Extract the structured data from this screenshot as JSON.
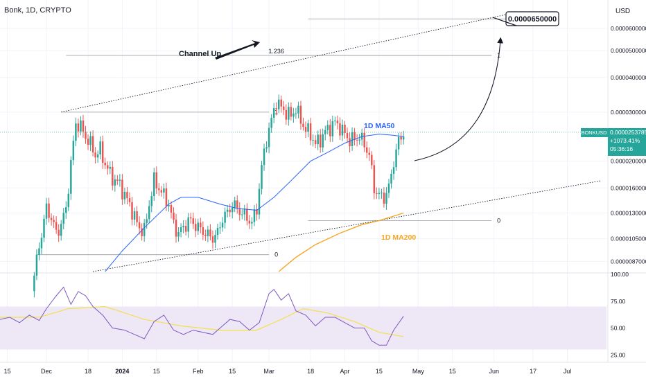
{
  "header": {
    "symbol_title": "Bonk, 1D, CRYPTO",
    "currency": "USD"
  },
  "colors": {
    "up": "#26a69a",
    "down": "#ef5350",
    "ma50": "#2962ff",
    "ma200": "#f5a623",
    "rsi": "#7e57c2",
    "rsi_ma": "#f4e04d",
    "rsi_band": "#ede7f6",
    "price_badge": "#26a69a"
  },
  "chart_data": [
    {
      "type": "candlestick",
      "title": "Bonk, 1D, CRYPTO",
      "xlabel": "",
      "ylabel": "",
      "y_scale": "log",
      "ylim": [
        8e-06,
        7.6e-05
      ],
      "x_range": [
        "2023-11-12",
        "2024-07-17"
      ],
      "x_ticks": [
        {
          "date": "2023-11-15",
          "label": "15"
        },
        {
          "date": "2023-12-01",
          "label": "Dec"
        },
        {
          "date": "2023-12-18",
          "label": "18"
        },
        {
          "date": "2024-01-01",
          "label": "2024"
        },
        {
          "date": "2024-01-15",
          "label": "15"
        },
        {
          "date": "2024-02-01",
          "label": "Feb"
        },
        {
          "date": "2024-02-15",
          "label": "15"
        },
        {
          "date": "2024-03-01",
          "label": "Mar"
        },
        {
          "date": "2024-03-18",
          "label": "18"
        },
        {
          "date": "2024-04-01",
          "label": "Apr"
        },
        {
          "date": "2024-04-15",
          "label": "15"
        },
        {
          "date": "2024-05-01",
          "label": "May"
        },
        {
          "date": "2024-05-15",
          "label": "15"
        },
        {
          "date": "2024-06-01",
          "label": "Jun"
        },
        {
          "date": "2024-06-17",
          "label": "17"
        },
        {
          "date": "2024-07-01",
          "label": "Jul"
        }
      ],
      "y_ticks": [
        "0.0000600000",
        "0.0000500000",
        "0.0000400000",
        "0.0000300000",
        "0.0000200000",
        "0.0000160000",
        "0.0000130000",
        "0.0000105000",
        "0.0000087000"
      ],
      "price_badge": {
        "symbol": "BONKUSD",
        "price": "0.0000253785",
        "change": "+1073.41%",
        "countdown": "05:36:16",
        "value": 2.53785e-05
      },
      "price_path": [
        [
          "2023-11-25",
          6.8e-06
        ],
        [
          "2023-11-27",
          8.8e-06
        ],
        [
          "2023-11-29",
          1.1e-05
        ],
        [
          "2023-12-01",
          1.35e-05
        ],
        [
          "2023-12-03",
          1.25e-05
        ],
        [
          "2023-12-05",
          1.1e-05
        ],
        [
          "2023-12-07",
          1.18e-05
        ],
        [
          "2023-12-09",
          1.35e-05
        ],
        [
          "2023-12-11",
          1.95e-05
        ],
        [
          "2023-12-13",
          2.75e-05
        ],
        [
          "2023-12-15",
          2.65e-05
        ],
        [
          "2023-12-17",
          2.45e-05
        ],
        [
          "2023-12-19",
          2.3e-05
        ],
        [
          "2023-12-21",
          2.1e-05
        ],
        [
          "2023-12-23",
          2.2e-05
        ],
        [
          "2023-12-25",
          1.95e-05
        ],
        [
          "2023-12-27",
          1.8e-05
        ],
        [
          "2023-12-29",
          1.7e-05
        ],
        [
          "2023-12-31",
          1.65e-05
        ],
        [
          "2024-01-02",
          1.5e-05
        ],
        [
          "2024-01-04",
          1.4e-05
        ],
        [
          "2024-01-06",
          1.25e-05
        ],
        [
          "2024-01-08",
          1.15e-05
        ],
        [
          "2024-01-10",
          1.12e-05
        ],
        [
          "2024-01-12",
          1.4e-05
        ],
        [
          "2024-01-14",
          1.7e-05
        ],
        [
          "2024-01-16",
          1.6e-05
        ],
        [
          "2024-01-18",
          1.5e-05
        ],
        [
          "2024-01-20",
          1.4e-05
        ],
        [
          "2024-01-22",
          1.18e-05
        ],
        [
          "2024-01-24",
          1.1e-05
        ],
        [
          "2024-01-26",
          1.15e-05
        ],
        [
          "2024-01-28",
          1.22e-05
        ],
        [
          "2024-01-30",
          1.2e-05
        ],
        [
          "2024-02-01",
          1.15e-05
        ],
        [
          "2024-02-03",
          1.12e-05
        ],
        [
          "2024-02-05",
          1.08e-05
        ],
        [
          "2024-02-07",
          1.06e-05
        ],
        [
          "2024-02-09",
          1.1e-05
        ],
        [
          "2024-02-11",
          1.25e-05
        ],
        [
          "2024-02-13",
          1.3e-05
        ],
        [
          "2024-02-15",
          1.4e-05
        ],
        [
          "2024-02-17",
          1.35e-05
        ],
        [
          "2024-02-19",
          1.3e-05
        ],
        [
          "2024-02-21",
          1.25e-05
        ],
        [
          "2024-02-23",
          1.2e-05
        ],
        [
          "2024-02-25",
          1.35e-05
        ],
        [
          "2024-02-27",
          1.9e-05
        ],
        [
          "2024-02-29",
          2.4e-05
        ],
        [
          "2024-03-02",
          2.8e-05
        ],
        [
          "2024-03-04",
          3.3e-05
        ],
        [
          "2024-03-06",
          3.1e-05
        ],
        [
          "2024-03-08",
          3e-05
        ],
        [
          "2024-03-10",
          2.9e-05
        ],
        [
          "2024-03-12",
          3.1e-05
        ],
        [
          "2024-03-14",
          2.8e-05
        ],
        [
          "2024-03-16",
          2.6e-05
        ],
        [
          "2024-03-18",
          2.5e-05
        ],
        [
          "2024-03-20",
          2.3e-05
        ],
        [
          "2024-03-22",
          2.4e-05
        ],
        [
          "2024-03-24",
          2.55e-05
        ],
        [
          "2024-03-26",
          2.65e-05
        ],
        [
          "2024-03-28",
          2.75e-05
        ],
        [
          "2024-03-30",
          2.65e-05
        ],
        [
          "2024-04-01",
          2.5e-05
        ],
        [
          "2024-04-03",
          2.38e-05
        ],
        [
          "2024-04-05",
          2.4e-05
        ],
        [
          "2024-04-07",
          2.45e-05
        ],
        [
          "2024-04-09",
          2.3e-05
        ],
        [
          "2024-04-11",
          2.1e-05
        ],
        [
          "2024-04-13",
          1.6e-05
        ],
        [
          "2024-04-15",
          1.5e-05
        ],
        [
          "2024-04-17",
          1.48e-05
        ],
        [
          "2024-04-19",
          1.6e-05
        ],
        [
          "2024-04-21",
          2e-05
        ],
        [
          "2024-04-23",
          2.35e-05
        ],
        [
          "2024-04-25",
          2.53785e-05
        ]
      ],
      "ma50": [
        [
          "2023-12-25",
          8e-06
        ],
        [
          "2024-01-01",
          9.5e-06
        ],
        [
          "2024-01-10",
          1.15e-05
        ],
        [
          "2024-01-20",
          1.4e-05
        ],
        [
          "2024-01-25",
          1.48e-05
        ],
        [
          "2024-02-01",
          1.48e-05
        ],
        [
          "2024-02-10",
          1.4e-05
        ],
        [
          "2024-02-17",
          1.35e-05
        ],
        [
          "2024-02-25",
          1.33e-05
        ],
        [
          "2024-03-03",
          1.48e-05
        ],
        [
          "2024-03-10",
          1.7e-05
        ],
        [
          "2024-03-18",
          2e-05
        ],
        [
          "2024-03-25",
          2.15e-05
        ],
        [
          "2024-04-01",
          2.32e-05
        ],
        [
          "2024-04-08",
          2.45e-05
        ],
        [
          "2024-04-15",
          2.5e-05
        ],
        [
          "2024-04-20",
          2.48e-05
        ],
        [
          "2024-04-25",
          2.45e-05
        ]
      ],
      "ma200": [
        [
          "2024-03-05",
          8e-06
        ],
        [
          "2024-03-12",
          9e-06
        ],
        [
          "2024-03-20",
          1e-05
        ],
        [
          "2024-03-30",
          1.1e-05
        ],
        [
          "2024-04-08",
          1.18e-05
        ],
        [
          "2024-04-15",
          1.22e-05
        ],
        [
          "2024-04-25",
          1.3e-05
        ]
      ],
      "channel_lines": [
        {
          "name": "channel-upper",
          "from": [
            "2023-12-07",
            3e-05
          ],
          "to": [
            "2024-06-08",
            6.8e-05
          ]
        },
        {
          "name": "channel-lower",
          "from": [
            "2023-12-20",
            8e-06
          ],
          "to": [
            "2024-07-15",
            1.7e-05
          ]
        }
      ],
      "fib_levels": [
        {
          "label": "1",
          "value": 3e-05,
          "from": "2023-12-07",
          "to": "2024-03-01",
          "label_pos": "right"
        },
        {
          "label": "0",
          "value": 9.2e-06,
          "from": "2023-11-27",
          "to": "2024-03-01",
          "label_pos": "right"
        },
        {
          "label": "1.236",
          "value": 4.8e-05,
          "from": "2023-12-09",
          "to": "2024-05-31",
          "label_pos": "mid"
        },
        {
          "label": "1",
          "value": 4.8e-05,
          "from": "2024-03-04",
          "to": "2024-05-31",
          "label_pos": "right"
        },
        {
          "label": "0",
          "value": 1.22e-05,
          "from": "2024-03-17",
          "to": "2024-05-31",
          "label_pos": "right"
        },
        {
          "label": "1.236",
          "value": 6.5e-05,
          "from": "2024-03-17",
          "to": "2024-06-06",
          "label_pos": "right"
        }
      ],
      "annotations": [
        {
          "name": "target-callout",
          "text": "0.0000650000"
        },
        {
          "name": "channel-up-label",
          "text": "Channel Up"
        },
        {
          "name": "ma50-label",
          "text": "1D MA50"
        },
        {
          "name": "ma200-label",
          "text": "1D MA200"
        }
      ]
    },
    {
      "type": "line",
      "title": "",
      "xlabel": "",
      "ylabel": "",
      "ylim": [
        20,
        100
      ],
      "y_ticks": [
        100.0,
        75.0,
        50.0,
        25.0
      ],
      "y_tick_labels": [
        "100.00",
        "75.00",
        "50.00",
        "25.00"
      ],
      "band": [
        30,
        70
      ],
      "series": [
        {
          "values": [
            [
              "2023-11-12",
              58
            ],
            [
              "2023-11-16",
              60
            ],
            [
              "2023-11-20",
              55
            ],
            [
              "2023-11-24",
              62
            ],
            [
              "2023-11-28",
              57
            ],
            [
              "2023-12-01",
              68
            ],
            [
              "2023-12-05",
              80
            ],
            [
              "2023-12-08",
              88
            ],
            [
              "2023-12-11",
              72
            ],
            [
              "2023-12-14",
              84
            ],
            [
              "2023-12-17",
              80
            ],
            [
              "2023-12-20",
              70
            ],
            [
              "2023-12-24",
              62
            ],
            [
              "2023-12-28",
              50
            ],
            [
              "2024-01-02",
              48
            ],
            [
              "2024-01-06",
              44
            ],
            [
              "2024-01-10",
              40
            ],
            [
              "2024-01-14",
              56
            ],
            [
              "2024-01-18",
              62
            ],
            [
              "2024-01-22",
              48
            ],
            [
              "2024-01-26",
              44
            ],
            [
              "2024-01-30",
              48
            ],
            [
              "2024-02-03",
              46
            ],
            [
              "2024-02-07",
              44
            ],
            [
              "2024-02-11",
              52
            ],
            [
              "2024-02-14",
              58
            ],
            [
              "2024-02-18",
              56
            ],
            [
              "2024-02-22",
              48
            ],
            [
              "2024-02-26",
              55
            ],
            [
              "2024-03-01",
              82
            ],
            [
              "2024-03-03",
              86
            ],
            [
              "2024-03-06",
              76
            ],
            [
              "2024-03-09",
              82
            ],
            [
              "2024-03-12",
              66
            ],
            [
              "2024-03-16",
              62
            ],
            [
              "2024-03-20",
              52
            ],
            [
              "2024-03-24",
              60
            ],
            [
              "2024-03-28",
              60
            ],
            [
              "2024-04-01",
              55
            ],
            [
              "2024-04-05",
              50
            ],
            [
              "2024-04-09",
              50
            ],
            [
              "2024-04-12",
              38
            ],
            [
              "2024-04-15",
              34
            ],
            [
              "2024-04-18",
              34
            ],
            [
              "2024-04-21",
              48
            ],
            [
              "2024-04-25",
              61
            ]
          ]
        },
        {
          "values": [
            [
              "2023-11-12",
              60
            ],
            [
              "2023-11-28",
              60
            ],
            [
              "2023-12-10",
              68
            ],
            [
              "2023-12-25",
              70
            ],
            [
              "2024-01-10",
              58
            ],
            [
              "2024-01-25",
              52
            ],
            [
              "2024-02-10",
              48
            ],
            [
              "2024-02-25",
              48
            ],
            [
              "2024-03-06",
              58
            ],
            [
              "2024-03-15",
              68
            ],
            [
              "2024-03-25",
              64
            ],
            [
              "2024-04-05",
              56
            ],
            [
              "2024-04-15",
              46
            ],
            [
              "2024-04-25",
              42
            ]
          ]
        }
      ]
    }
  ]
}
